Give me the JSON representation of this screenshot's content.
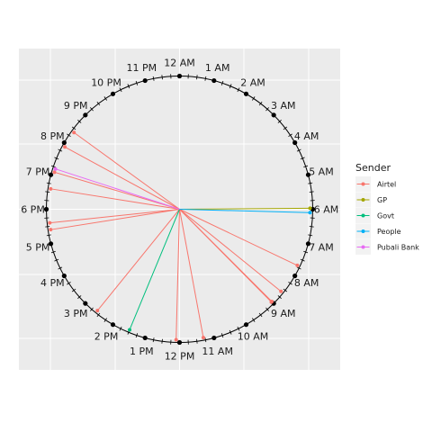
{
  "chart_data": {
    "type": "radial-clock",
    "hour_labels": [
      "12 AM",
      "1 AM",
      "2 AM",
      "3 AM",
      "4 AM",
      "5 AM",
      "6 AM",
      "7 AM",
      "8 AM",
      "9 AM",
      "10 AM",
      "11 AM",
      "12 PM",
      "1 PM",
      "2 PM",
      "3 PM",
      "4 PM",
      "5 PM",
      "6 PM",
      "7 PM",
      "8 PM",
      "9 PM",
      "10 PM",
      "11 PM"
    ],
    "grid": true,
    "legend": {
      "title": "Sender",
      "placement": "right",
      "entries": [
        {
          "name": "Airtel",
          "color": "#F8766D"
        },
        {
          "name": "GP",
          "color": "#A3A500"
        },
        {
          "name": "Govt",
          "color": "#00BF7D"
        },
        {
          "name": "People",
          "color": "#00B0F6"
        },
        {
          "name": "Pubali Bank",
          "color": "#E76BF3"
        }
      ]
    },
    "series": [
      {
        "name": "Airtel",
        "color": "#F8766D",
        "hours": [
          7.7,
          8.6,
          9.0,
          9.02,
          11.3,
          12.1,
          14.6,
          17.4,
          17.6,
          18.6,
          19.1,
          19.9,
          20.4
        ]
      },
      {
        "name": "GP",
        "color": "#A3A500",
        "hours": [
          5.97
        ]
      },
      {
        "name": "Govt",
        "color": "#00BF7D",
        "hours": [
          13.5
        ]
      },
      {
        "name": "People",
        "color": "#00B0F6",
        "hours": [
          6.1
        ]
      },
      {
        "name": "Pubali Bank",
        "color": "#E76BF3",
        "hours": [
          19.2
        ]
      }
    ]
  }
}
